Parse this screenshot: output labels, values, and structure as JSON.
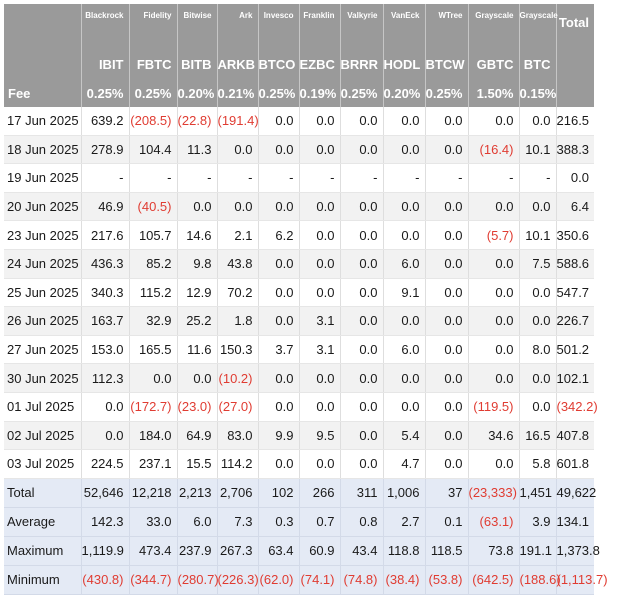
{
  "header": {
    "fee_label": "Fee",
    "total_label": "Total",
    "funds": [
      {
        "issuer": "Blackrock",
        "ticker": "IBIT",
        "fee": "0.25%"
      },
      {
        "issuer": "Fidelity",
        "ticker": "FBTC",
        "fee": "0.25%"
      },
      {
        "issuer": "Bitwise",
        "ticker": "BITB",
        "fee": "0.20%"
      },
      {
        "issuer": "Ark",
        "ticker": "ARKB",
        "fee": "0.21%"
      },
      {
        "issuer": "Invesco",
        "ticker": "BTCO",
        "fee": "0.25%"
      },
      {
        "issuer": "Franklin",
        "ticker": "EZBC",
        "fee": "0.19%"
      },
      {
        "issuer": "Valkyrie",
        "ticker": "BRRR",
        "fee": "0.25%"
      },
      {
        "issuer": "VanEck",
        "ticker": "HODL",
        "fee": "0.20%"
      },
      {
        "issuer": "WTree",
        "ticker": "BTCW",
        "fee": "0.25%"
      },
      {
        "issuer": "Grayscale",
        "ticker": "GBTC",
        "fee": "1.50%"
      },
      {
        "issuer": "Grayscale",
        "ticker": "BTC",
        "fee": "0.15%"
      }
    ]
  },
  "rows": [
    {
      "date": "17 Jun 2025",
      "values": [
        "639.2",
        "(208.5)",
        "(22.8)",
        "(191.4)",
        "0.0",
        "0.0",
        "0.0",
        "0.0",
        "0.0",
        "0.0",
        "0.0",
        "216.5"
      ]
    },
    {
      "date": "18 Jun 2025",
      "values": [
        "278.9",
        "104.4",
        "11.3",
        "0.0",
        "0.0",
        "0.0",
        "0.0",
        "0.0",
        "0.0",
        "(16.4)",
        "10.1",
        "388.3"
      ]
    },
    {
      "date": "19 Jun 2025",
      "values": [
        "-",
        "-",
        "-",
        "-",
        "-",
        "-",
        "-",
        "-",
        "-",
        "-",
        "-",
        "0.0"
      ]
    },
    {
      "date": "20 Jun 2025",
      "values": [
        "46.9",
        "(40.5)",
        "0.0",
        "0.0",
        "0.0",
        "0.0",
        "0.0",
        "0.0",
        "0.0",
        "0.0",
        "0.0",
        "6.4"
      ]
    },
    {
      "date": "23 Jun 2025",
      "values": [
        "217.6",
        "105.7",
        "14.6",
        "2.1",
        "6.2",
        "0.0",
        "0.0",
        "0.0",
        "0.0",
        "(5.7)",
        "10.1",
        "350.6"
      ]
    },
    {
      "date": "24 Jun 2025",
      "values": [
        "436.3",
        "85.2",
        "9.8",
        "43.8",
        "0.0",
        "0.0",
        "0.0",
        "6.0",
        "0.0",
        "0.0",
        "7.5",
        "588.6"
      ]
    },
    {
      "date": "25 Jun 2025",
      "values": [
        "340.3",
        "115.2",
        "12.9",
        "70.2",
        "0.0",
        "0.0",
        "0.0",
        "9.1",
        "0.0",
        "0.0",
        "0.0",
        "547.7"
      ]
    },
    {
      "date": "26 Jun 2025",
      "values": [
        "163.7",
        "32.9",
        "25.2",
        "1.8",
        "0.0",
        "3.1",
        "0.0",
        "0.0",
        "0.0",
        "0.0",
        "0.0",
        "226.7"
      ]
    },
    {
      "date": "27 Jun 2025",
      "values": [
        "153.0",
        "165.5",
        "11.6",
        "150.3",
        "3.7",
        "3.1",
        "0.0",
        "6.0",
        "0.0",
        "0.0",
        "8.0",
        "501.2"
      ]
    },
    {
      "date": "30 Jun 2025",
      "values": [
        "112.3",
        "0.0",
        "0.0",
        "(10.2)",
        "0.0",
        "0.0",
        "0.0",
        "0.0",
        "0.0",
        "0.0",
        "0.0",
        "102.1"
      ]
    },
    {
      "date": "01 Jul 2025",
      "values": [
        "0.0",
        "(172.7)",
        "(23.0)",
        "(27.0)",
        "0.0",
        "0.0",
        "0.0",
        "0.0",
        "0.0",
        "(119.5)",
        "0.0",
        "(342.2)"
      ]
    },
    {
      "date": "02 Jul 2025",
      "values": [
        "0.0",
        "184.0",
        "64.9",
        "83.0",
        "9.9",
        "9.5",
        "0.0",
        "5.4",
        "0.0",
        "34.6",
        "16.5",
        "407.8"
      ]
    },
    {
      "date": "03 Jul 2025",
      "values": [
        "224.5",
        "237.1",
        "15.5",
        "114.2",
        "0.0",
        "0.0",
        "0.0",
        "4.7",
        "0.0",
        "0.0",
        "5.8",
        "601.8"
      ]
    }
  ],
  "summary": [
    {
      "label": "Total",
      "values": [
        "52,646",
        "12,218",
        "2,213",
        "2,706",
        "102",
        "266",
        "311",
        "1,006",
        "37",
        "(23,333)",
        "1,451",
        "49,622"
      ]
    },
    {
      "label": "Average",
      "values": [
        "142.3",
        "33.0",
        "6.0",
        "7.3",
        "0.3",
        "0.7",
        "0.8",
        "2.7",
        "0.1",
        "(63.1)",
        "3.9",
        "134.1"
      ]
    },
    {
      "label": "Maximum",
      "values": [
        "1,119.9",
        "473.4",
        "237.9",
        "267.3",
        "63.4",
        "60.9",
        "43.4",
        "118.8",
        "118.5",
        "73.8",
        "191.1",
        "1,373.8"
      ]
    },
    {
      "label": "Minimum",
      "values": [
        "(430.8)",
        "(344.7)",
        "(280.7)",
        "(226.3)",
        "(62.0)",
        "(74.1)",
        "(74.8)",
        "(38.4)",
        "(53.8)",
        "(642.5)",
        "(188.6)",
        "(1,113.7)"
      ]
    }
  ]
}
